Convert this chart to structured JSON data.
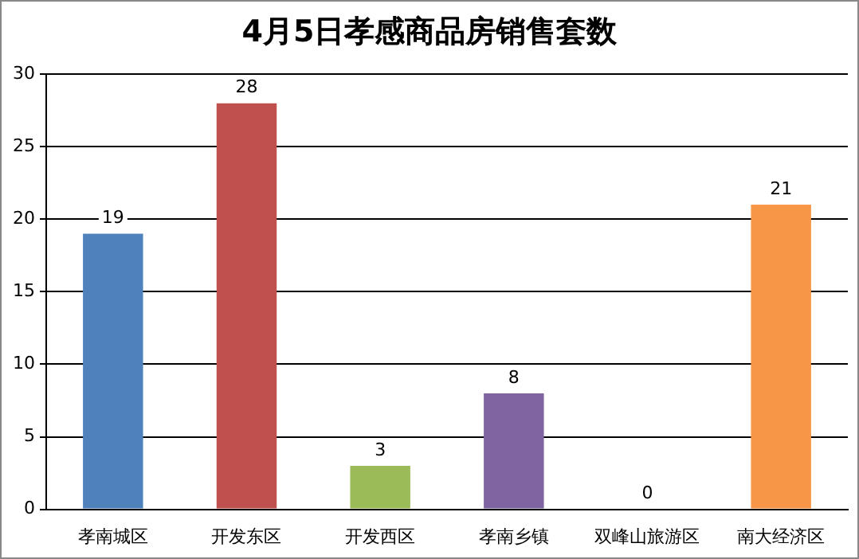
{
  "chart_data": {
    "type": "bar",
    "title": "4月5日孝感商品房销售套数",
    "categories": [
      "孝南城区",
      "开发东区",
      "开发西区",
      "孝南乡镇",
      "双峰山旅游区",
      "南大经济区"
    ],
    "values": [
      19,
      28,
      3,
      8,
      0,
      21
    ],
    "colors": [
      "#4f81bd",
      "#c0504d",
      "#9bbb59",
      "#8064a2",
      "#4bacc6",
      "#f79646"
    ],
    "ylim": [
      0,
      30
    ],
    "yticks": [
      0,
      5,
      10,
      15,
      20,
      25,
      30
    ],
    "grid": "y",
    "data_labels": true
  }
}
